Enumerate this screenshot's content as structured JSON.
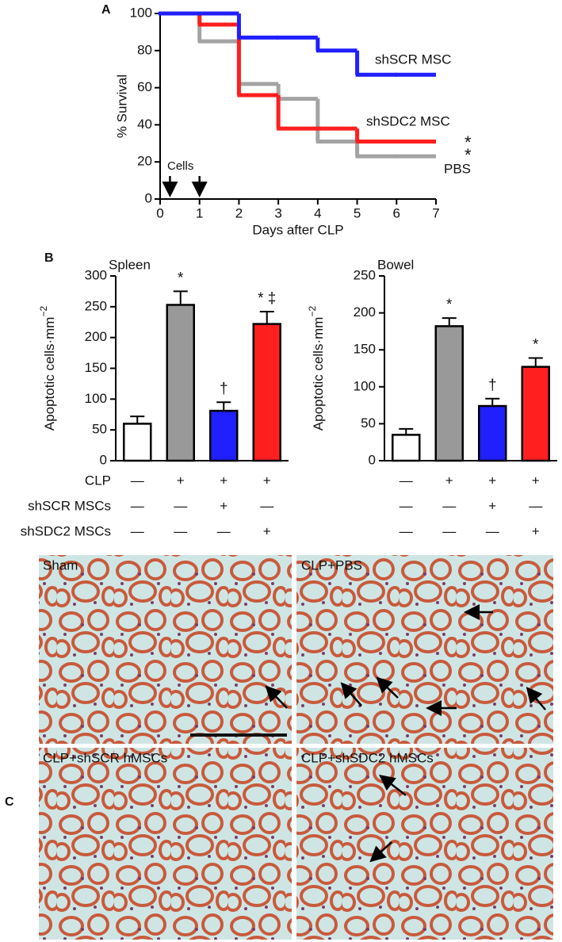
{
  "panel_labels": [
    "A",
    "B",
    "C"
  ],
  "chart_data": [
    {
      "type": "line",
      "step": true,
      "xlabel": "Days after CLP",
      "ylabel": "% Survival",
      "x": [
        0,
        1,
        2,
        3,
        4,
        5,
        6
      ],
      "xlim": [
        0,
        7
      ],
      "xticks": [
        0,
        1,
        2,
        3,
        4,
        5,
        6,
        7
      ],
      "ylim": [
        0,
        100
      ],
      "yticks": [
        0,
        20,
        40,
        60,
        80,
        100
      ],
      "series": [
        {
          "name": "shSCR MSC",
          "color": "#1f1fff",
          "values": [
            100,
            100,
            87,
            87,
            80,
            67,
            67
          ]
        },
        {
          "name": "shSDC2 MSC",
          "color": "#ff1f1f",
          "values": [
            100,
            94,
            56,
            38,
            38,
            31,
            31
          ]
        },
        {
          "name": "PBS",
          "color": "#a3a3a3",
          "values": [
            100,
            85,
            62,
            54,
            31,
            23,
            23
          ]
        }
      ],
      "annotations": [
        "*",
        "*"
      ],
      "cell_label": "Cells",
      "cell_arrows_x": [
        0.25,
        1
      ]
    },
    {
      "type": "bar",
      "title": "Spleen",
      "ylabel": "Apoptotic cells·mm",
      "ylabel_sup": "−2",
      "ylim": [
        0,
        300
      ],
      "yticks": [
        0,
        50,
        100,
        150,
        200,
        250,
        300
      ],
      "values": [
        60,
        253,
        81,
        222
      ],
      "errors": [
        12,
        22,
        14,
        20
      ],
      "colors": [
        "#ffffff",
        "#999999",
        "#1f1fff",
        "#ff1f1f"
      ],
      "bar_labels": [
        null,
        "*",
        "†",
        "* ‡"
      ]
    },
    {
      "type": "bar",
      "title": "Bowel",
      "ylabel": "Apoptotic cells·mm",
      "ylabel_sup": "−2",
      "ylim": [
        0,
        250
      ],
      "yticks": [
        0,
        50,
        100,
        150,
        200,
        250
      ],
      "values": [
        35,
        182,
        74,
        127
      ],
      "errors": [
        8,
        11,
        10,
        12
      ],
      "colors": [
        "#ffffff",
        "#999999",
        "#1f1fff",
        "#ff1f1f"
      ],
      "bar_labels": [
        null,
        "*",
        "†",
        "*"
      ]
    }
  ],
  "conditions": {
    "rows": [
      {
        "label": "CLP",
        "marks": [
          "—",
          "+",
          "+",
          "+"
        ]
      },
      {
        "label": "shSCR MSCs",
        "marks": [
          "—",
          "—",
          "+",
          "—"
        ]
      },
      {
        "label": "shSDC2 MSCs",
        "marks": [
          "—",
          "—",
          "—",
          "+"
        ]
      }
    ]
  },
  "micrographs": [
    "Sham",
    "CLP+PBS",
    "CLP+shSCR hMSCs",
    "CLP+shSDC2 hMSCs"
  ]
}
